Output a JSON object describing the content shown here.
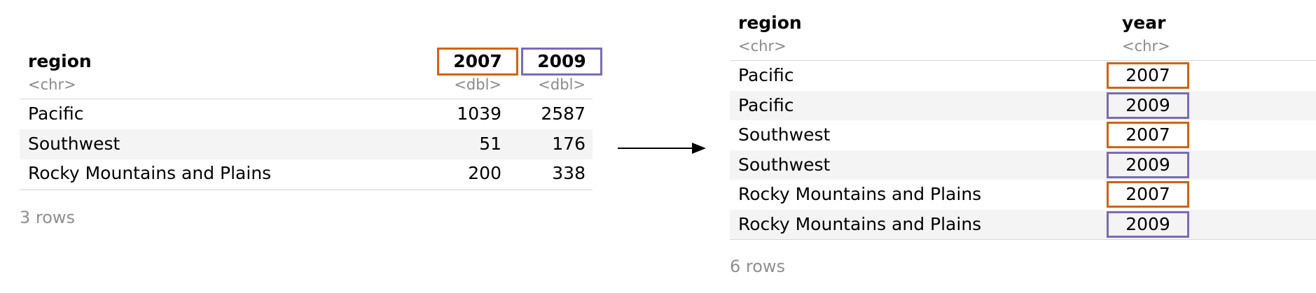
{
  "left_table": {
    "headers": {
      "region": "region",
      "c2007": "2007",
      "c2009": "2009"
    },
    "types": {
      "region": "<chr>",
      "c2007": "<dbl>",
      "c2009": "<dbl>"
    },
    "rows": [
      {
        "region": "Pacific",
        "v2007": "1039",
        "v2009": "2587"
      },
      {
        "region": "Southwest",
        "v2007": "51",
        "v2009": "176"
      },
      {
        "region": "Rocky Mountains and Plains",
        "v2007": "200",
        "v2009": "338"
      }
    ],
    "row_count": "3 rows"
  },
  "right_table": {
    "headers": {
      "region": "region",
      "year": "year"
    },
    "types": {
      "region": "<chr>",
      "year": "<chr>"
    },
    "rows": [
      {
        "region": "Pacific",
        "year": "2007"
      },
      {
        "region": "Pacific",
        "year": "2009"
      },
      {
        "region": "Southwest",
        "year": "2007"
      },
      {
        "region": "Southwest",
        "year": "2009"
      },
      {
        "region": "Rocky Mountains and Plains",
        "year": "2007"
      },
      {
        "region": "Rocky Mountains and Plains",
        "year": "2009"
      }
    ],
    "row_count": "6 rows"
  },
  "colors": {
    "orange": "#d4620e",
    "purple": "#7a6ab8",
    "arrow": "#000000"
  }
}
